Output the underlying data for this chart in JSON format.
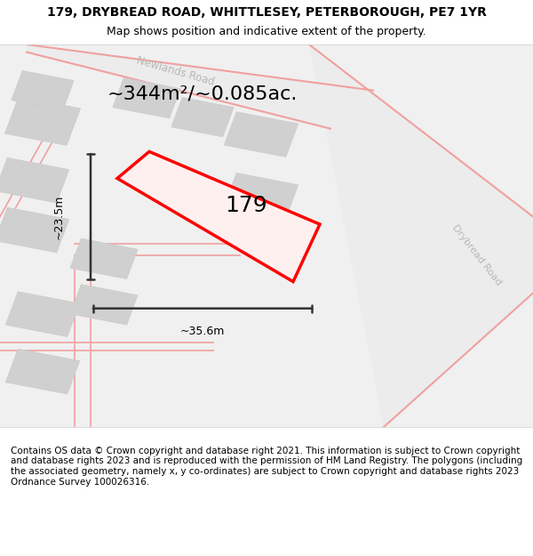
{
  "title_line1": "179, DRYBREAD ROAD, WHITTLESEY, PETERBOROUGH, PE7 1YR",
  "title_line2": "Map shows position and indicative extent of the property.",
  "area_text": "~344m²/~0.085ac.",
  "property_number": "179",
  "dim_width": "~35.6m",
  "dim_height": "~23.5m",
  "footer_text": "Contains OS data © Crown copyright and database right 2021. This information is subject to Crown copyright and database rights 2023 and is reproduced with the permission of HM Land Registry. The polygons (including the associated geometry, namely x, y co-ordinates) are subject to Crown copyright and database rights 2023 Ordnance Survey 100026316.",
  "bg_color": "#f5f5f5",
  "map_bg": "#ffffff",
  "road_color_light": "#f0a0a0",
  "road_color_dark": "#d44040",
  "property_fill": "none",
  "property_edge": "#ff0000",
  "building_fill": "#d0d0d0",
  "building_edge": "#bbbbbb",
  "road_label_color": "#b0b0b0",
  "dim_color": "#333333",
  "drybread_road_label": "Drybread Road",
  "newlands_road_label": "Newlands Road",
  "title_fontsize": 10,
  "subtitle_fontsize": 9,
  "area_fontsize": 16,
  "property_num_fontsize": 18,
  "footer_fontsize": 7.5
}
